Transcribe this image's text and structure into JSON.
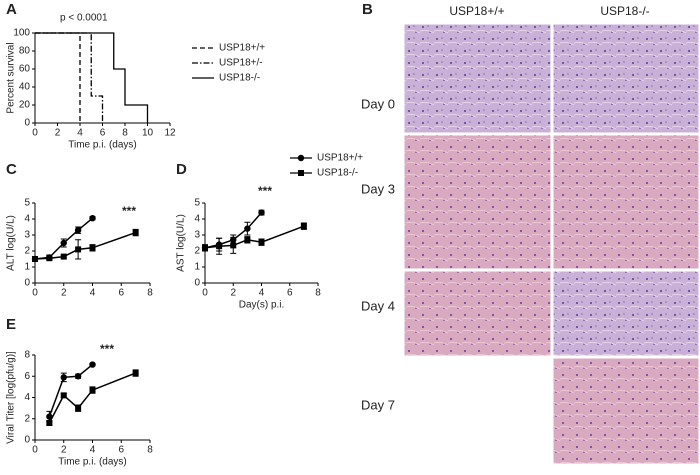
{
  "figure": {
    "panel_labels": [
      "A",
      "B",
      "C",
      "D",
      "E"
    ],
    "histology": {
      "columns": [
        "USP18+/+",
        "USP18-/-"
      ],
      "rows": [
        "Day 0",
        "Day 3",
        "Day 4",
        "Day 7"
      ]
    }
  },
  "chart_data": [
    {
      "type": "step",
      "xlabel": "Time p.i. (days)",
      "ylabel": "Percent survival",
      "annotation": "p < 0.0001",
      "xlim": [
        0,
        12
      ],
      "xticks": [
        0,
        2,
        4,
        6,
        8,
        10,
        12
      ],
      "ylim": [
        0,
        100
      ],
      "yticks": [
        0,
        20,
        40,
        60,
        80,
        100
      ],
      "legend": true,
      "series": [
        {
          "name": "USP18+/+",
          "color": "#000000",
          "dash": "dashed",
          "x": [
            0,
            4
          ],
          "values": [
            100,
            0
          ]
        },
        {
          "name": "USP18+/-",
          "color": "#000000",
          "dash": "dashdot",
          "x": [
            0,
            5,
            6
          ],
          "values": [
            100,
            30,
            0
          ]
        },
        {
          "name": "USP18-/-",
          "color": "#000000",
          "dash": "solid",
          "x": [
            0,
            7,
            8,
            10
          ],
          "values": [
            100,
            60,
            20,
            0
          ]
        }
      ]
    },
    {
      "type": "errorline",
      "ylabel": "ALT log(U/L)",
      "annotation": "***",
      "xlim": [
        0,
        8
      ],
      "xticks": [
        0,
        2,
        4,
        6,
        8
      ],
      "ylim": [
        0,
        5
      ],
      "yticks": [
        0,
        1,
        2,
        3,
        4,
        5
      ],
      "legend": false,
      "series": [
        {
          "name": "USP18+/+",
          "color": "#000000",
          "marker": "circle",
          "x": [
            0,
            1,
            2,
            3,
            4
          ],
          "values": [
            1.5,
            1.6,
            2.5,
            3.3,
            4.05
          ],
          "errors": [
            0.1,
            0.15,
            0.25,
            0.2,
            0.1
          ]
        },
        {
          "name": "USP18-/-",
          "color": "#000000",
          "marker": "square",
          "x": [
            0,
            1,
            2,
            3,
            4,
            7
          ],
          "values": [
            1.5,
            1.55,
            1.65,
            2.1,
            2.2,
            3.15
          ],
          "errors": [
            0.1,
            0.1,
            0.1,
            0.6,
            0.2,
            0.2
          ]
        }
      ]
    },
    {
      "type": "errorline",
      "xlabel": "Day(s) p.i.",
      "ylabel": "AST log(U/L)",
      "annotation": "***",
      "xlim": [
        0,
        8
      ],
      "xticks": [
        0,
        2,
        4,
        6,
        8
      ],
      "ylim": [
        0,
        5
      ],
      "yticks": [
        0,
        1,
        2,
        3,
        4,
        5
      ],
      "legend": true,
      "series": [
        {
          "name": "USP18+/+",
          "color": "#000000",
          "marker": "circle",
          "x": [
            0,
            1,
            2,
            3,
            4
          ],
          "values": [
            2.2,
            2.4,
            2.7,
            3.4,
            4.4
          ],
          "errors": [
            0.2,
            0.4,
            0.3,
            0.4,
            0.15
          ]
        },
        {
          "name": "USP18-/-",
          "color": "#000000",
          "marker": "square",
          "x": [
            0,
            1,
            2,
            3,
            4,
            7
          ],
          "values": [
            2.2,
            2.3,
            2.35,
            2.7,
            2.55,
            3.55
          ],
          "errors": [
            0.1,
            0.5,
            0.5,
            0.2,
            0.2,
            0.2
          ]
        }
      ]
    },
    {
      "type": "errorline",
      "xlabel": "Time p.i. (days)",
      "ylabel": "Viral Titer [log(pfu/g)]",
      "annotation": "***",
      "xlim": [
        0,
        8
      ],
      "xticks": [
        0,
        2,
        4,
        6,
        8
      ],
      "ylim": [
        0,
        8
      ],
      "yticks": [
        0,
        2,
        4,
        6,
        8
      ],
      "legend": false,
      "series": [
        {
          "name": "USP18+/+",
          "color": "#000000",
          "marker": "circle",
          "x": [
            1,
            2,
            3,
            4
          ],
          "values": [
            2.2,
            5.9,
            6.0,
            7.1
          ],
          "errors": [
            0.5,
            0.4,
            0.2,
            0.1
          ]
        },
        {
          "name": "USP18-/-",
          "color": "#000000",
          "marker": "square",
          "x": [
            1,
            2,
            3,
            4,
            7
          ],
          "values": [
            1.6,
            4.2,
            3.0,
            4.7,
            6.3
          ],
          "errors": [
            0.2,
            0.2,
            0.3,
            0.3,
            0.3
          ]
        }
      ]
    }
  ]
}
